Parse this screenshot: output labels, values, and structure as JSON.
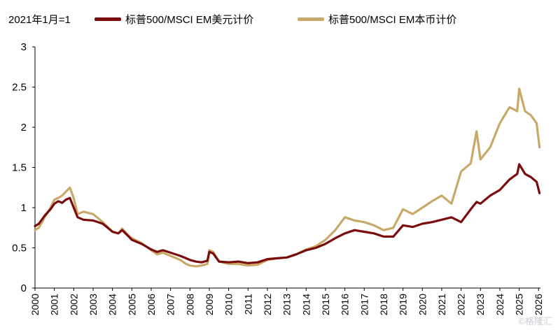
{
  "chart_data": {
    "type": "line",
    "unit_note": "2021年1月=1",
    "xlabel": "",
    "ylabel": "",
    "ylim": [
      0,
      3
    ],
    "y_ticks": [
      "0",
      "0.5",
      "1",
      "1.5",
      "2",
      "2.5",
      "3"
    ],
    "y_tick_values": [
      0,
      0.5,
      1,
      1.5,
      2,
      2.5,
      3
    ],
    "x_ticks": [
      "2000",
      "2001",
      "2002",
      "2003",
      "2004",
      "2005",
      "2006",
      "2007",
      "2008",
      "2009",
      "2010",
      "2011",
      "2012",
      "2013",
      "2014",
      "2015",
      "2016",
      "2017",
      "2018",
      "2019",
      "2020",
      "2021",
      "2022",
      "2023",
      "2024",
      "2025",
      "2026"
    ],
    "xlim": [
      2000,
      2026.1
    ],
    "grid": false,
    "legend_position": "top",
    "series": [
      {
        "name": "标普500/MSCI EM美元计价",
        "color": "#7a0c0c",
        "x": [
          2000.0,
          2000.2,
          2000.5,
          2000.8,
          2001.0,
          2001.2,
          2001.4,
          2001.6,
          2001.8,
          2002.0,
          2002.2,
          2002.5,
          2003.0,
          2003.5,
          2004.0,
          2004.3,
          2004.5,
          2004.8,
          2005.0,
          2005.5,
          2006.0,
          2006.3,
          2006.6,
          2007.0,
          2007.5,
          2007.8,
          2008.0,
          2008.3,
          2008.6,
          2008.9,
          2009.0,
          2009.2,
          2009.5,
          2010.0,
          2010.5,
          2011.0,
          2011.5,
          2012.0,
          2012.5,
          2013.0,
          2013.5,
          2014.0,
          2014.5,
          2015.0,
          2015.5,
          2016.0,
          2016.5,
          2017.0,
          2017.5,
          2018.0,
          2018.5,
          2019.0,
          2019.5,
          2020.0,
          2020.5,
          2021.0,
          2021.5,
          2022.0,
          2022.5,
          2022.8,
          2023.0,
          2023.5,
          2024.0,
          2024.5,
          2024.9,
          2025.0,
          2025.3,
          2025.6,
          2025.9,
          2026.05
        ],
        "values": [
          0.77,
          0.8,
          0.9,
          0.98,
          1.05,
          1.08,
          1.06,
          1.1,
          1.12,
          1.0,
          0.88,
          0.85,
          0.84,
          0.8,
          0.7,
          0.68,
          0.72,
          0.65,
          0.6,
          0.55,
          0.48,
          0.45,
          0.47,
          0.44,
          0.4,
          0.37,
          0.35,
          0.33,
          0.32,
          0.34,
          0.45,
          0.43,
          0.33,
          0.32,
          0.33,
          0.31,
          0.32,
          0.36,
          0.37,
          0.38,
          0.42,
          0.47,
          0.5,
          0.55,
          0.62,
          0.68,
          0.72,
          0.7,
          0.68,
          0.64,
          0.64,
          0.78,
          0.76,
          0.8,
          0.82,
          0.85,
          0.88,
          0.82,
          0.98,
          1.07,
          1.05,
          1.15,
          1.22,
          1.35,
          1.42,
          1.54,
          1.42,
          1.38,
          1.32,
          1.18
        ]
      },
      {
        "name": "标普500/MSCI EM本币计价",
        "color": "#c8a96a",
        "x": [
          2000.0,
          2000.2,
          2000.5,
          2000.8,
          2001.0,
          2001.2,
          2001.4,
          2001.6,
          2001.8,
          2002.0,
          2002.2,
          2002.5,
          2003.0,
          2003.5,
          2004.0,
          2004.3,
          2004.5,
          2004.8,
          2005.0,
          2005.5,
          2006.0,
          2006.3,
          2006.6,
          2007.0,
          2007.5,
          2007.8,
          2008.0,
          2008.3,
          2008.6,
          2008.9,
          2009.0,
          2009.2,
          2009.5,
          2010.0,
          2010.5,
          2011.0,
          2011.5,
          2012.0,
          2012.5,
          2013.0,
          2013.5,
          2014.0,
          2014.5,
          2015.0,
          2015.5,
          2016.0,
          2016.5,
          2017.0,
          2017.5,
          2018.0,
          2018.5,
          2019.0,
          2019.5,
          2020.0,
          2020.5,
          2021.0,
          2021.5,
          2022.0,
          2022.5,
          2022.8,
          2023.0,
          2023.5,
          2024.0,
          2024.5,
          2024.9,
          2025.0,
          2025.3,
          2025.6,
          2025.9,
          2026.05
        ],
        "values": [
          0.72,
          0.75,
          0.88,
          1.0,
          1.1,
          1.12,
          1.15,
          1.2,
          1.25,
          1.12,
          0.92,
          0.95,
          0.92,
          0.82,
          0.7,
          0.68,
          0.74,
          0.66,
          0.62,
          0.56,
          0.47,
          0.42,
          0.44,
          0.4,
          0.35,
          0.3,
          0.28,
          0.27,
          0.28,
          0.3,
          0.47,
          0.45,
          0.33,
          0.3,
          0.3,
          0.28,
          0.29,
          0.35,
          0.37,
          0.38,
          0.42,
          0.48,
          0.52,
          0.6,
          0.72,
          0.88,
          0.84,
          0.82,
          0.78,
          0.72,
          0.75,
          0.98,
          0.92,
          1.0,
          1.08,
          1.15,
          1.05,
          1.45,
          1.55,
          1.95,
          1.6,
          1.75,
          2.05,
          2.25,
          2.2,
          2.48,
          2.2,
          2.15,
          2.05,
          1.75
        ]
      }
    ]
  },
  "watermark": "©格隆汇"
}
